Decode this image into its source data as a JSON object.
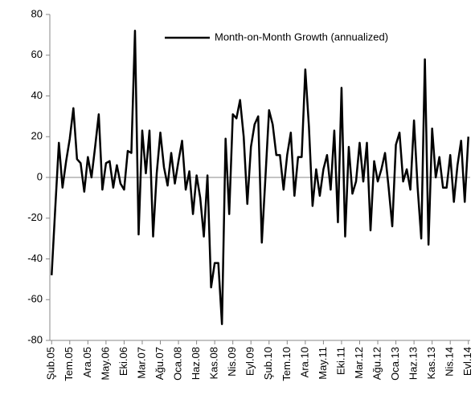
{
  "chart_data": {
    "type": "line",
    "categories": [
      "Şub.05",
      null,
      null,
      null,
      null,
      "Tem.05",
      null,
      null,
      null,
      null,
      "Ara.05",
      null,
      null,
      null,
      null,
      "May.06",
      null,
      null,
      null,
      null,
      "Eki.06",
      null,
      null,
      null,
      null,
      "Mar.07",
      null,
      null,
      null,
      null,
      "Ağu.07",
      null,
      null,
      null,
      null,
      "Oca.08",
      null,
      null,
      null,
      null,
      "Haz.08",
      null,
      null,
      null,
      null,
      "Kas.08",
      null,
      null,
      null,
      null,
      "Nis.09",
      null,
      null,
      null,
      null,
      "Eyl.09",
      null,
      null,
      null,
      null,
      "Şub.10",
      null,
      null,
      null,
      null,
      "Tem.10",
      null,
      null,
      null,
      null,
      "Ara.10",
      null,
      null,
      null,
      null,
      "May.11",
      null,
      null,
      null,
      null,
      "Eki.11",
      null,
      null,
      null,
      null,
      "Mar.12",
      null,
      null,
      null,
      null,
      "Ağu.12",
      null,
      null,
      null,
      null,
      "Oca.13",
      null,
      null,
      null,
      null,
      "Haz.13",
      null,
      null,
      null,
      null,
      "Kas.13",
      null,
      null,
      null,
      null,
      "Nis.14",
      null,
      null,
      null,
      null,
      "Evl.14"
    ],
    "series": [
      {
        "name": "Month-on-Month Growth (annualized)",
        "color": "#000000",
        "values": [
          -48,
          -15,
          17,
          -5,
          8,
          19,
          34,
          9,
          7,
          -7,
          10,
          0,
          15,
          31,
          -6,
          7,
          8,
          -5,
          6,
          -3,
          -6,
          13,
          12,
          72,
          -28,
          23,
          2,
          23,
          -29,
          2,
          22,
          5,
          -4,
          12,
          -3,
          8,
          18,
          -6,
          3,
          -18,
          1,
          -10,
          -29,
          1,
          -54,
          -42,
          -42,
          -72,
          19,
          -18,
          31,
          29,
          38,
          20,
          -13,
          15,
          26,
          30,
          -32,
          0,
          33,
          26,
          11,
          11,
          -6,
          11,
          22,
          -9,
          10,
          10,
          53,
          25,
          -14,
          4,
          -9,
          4,
          11,
          -6,
          23,
          -22,
          44,
          -29,
          15,
          -8,
          -2,
          17,
          -2,
          17,
          -26,
          8,
          -2,
          4,
          12,
          -5,
          -24,
          16,
          22,
          -2,
          4,
          -6,
          28,
          -5,
          -30,
          58,
          -33,
          24,
          0,
          10,
          -5,
          -5,
          11,
          -12,
          6,
          18,
          -12,
          20
        ]
      }
    ],
    "ylim": [
      -80,
      80
    ],
    "yticks": [
      -80,
      -60,
      -40,
      -20,
      0,
      20,
      40,
      60,
      80
    ],
    "grid": false,
    "legend": "upper right"
  }
}
